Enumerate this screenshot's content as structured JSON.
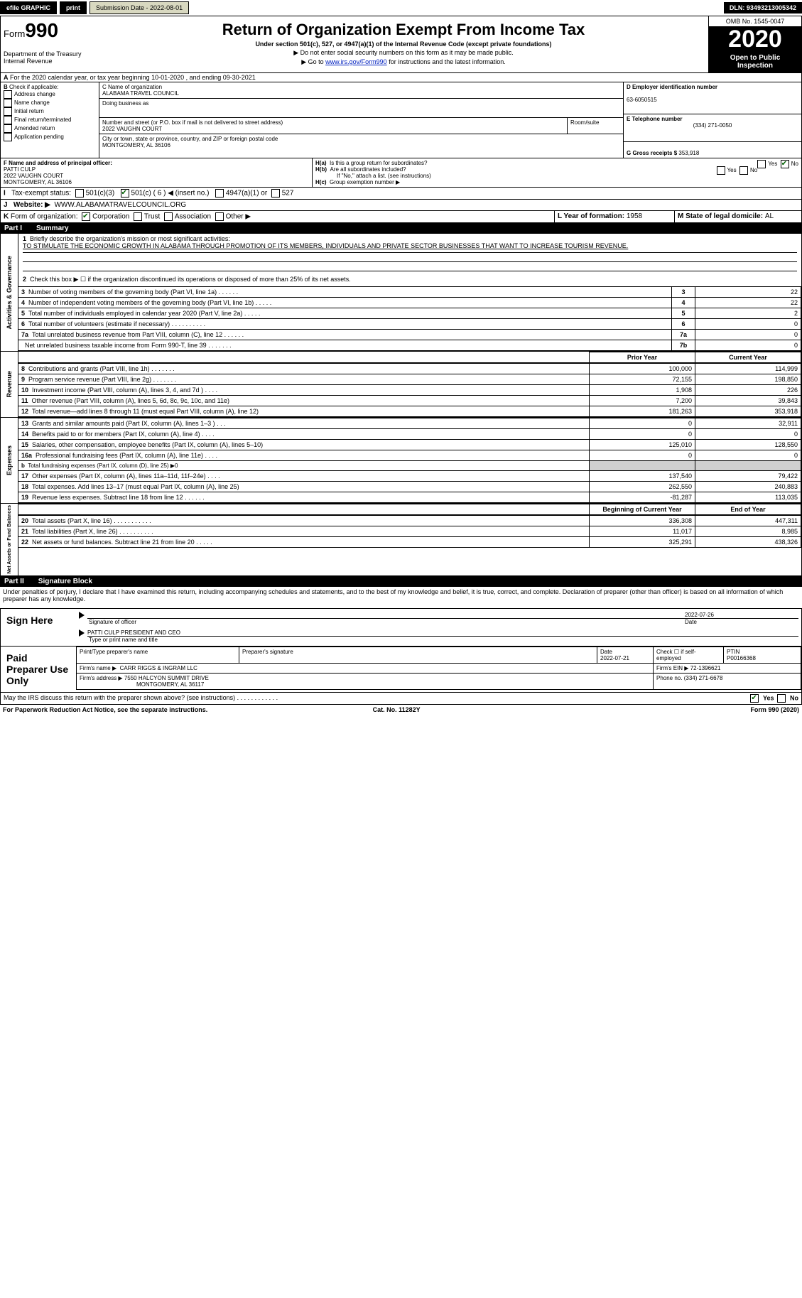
{
  "topbar": {
    "efile": "efile GRAPHIC",
    "print": "print",
    "submission_label": "Submission Date - ",
    "submission_date": "2022-08-01",
    "dln_label": "DLN: ",
    "dln": "93493213005342"
  },
  "header": {
    "form_prefix": "Form",
    "form_number": "990",
    "dept": "Department of the Treasury",
    "irs": "Internal Revenue",
    "title": "Return of Organization Exempt From Income Tax",
    "subtitle": "Under section 501(c), 527, or 4947(a)(1) of the Internal Revenue Code (except private foundations)",
    "note1": "▶ Do not enter social security numbers on this form as it may be made public.",
    "note2_a": "▶ Go to ",
    "note2_link": "www.irs.gov/Form990",
    "note2_b": " for instructions and the latest information.",
    "omb": "OMB No. 1545-0047",
    "year": "2020",
    "open": "Open to Public Inspection"
  },
  "periodA": "For the 2020 calendar year, or tax year beginning 10-01-2020     , and ending 09-30-2021",
  "boxB": {
    "title": "Check if applicable:",
    "opts": [
      "Address change",
      "Name change",
      "Initial return",
      "Final return/terminated",
      "Amended return",
      "Application pending"
    ]
  },
  "boxC": {
    "name_lbl": "C Name of organization",
    "name": "ALABAMA TRAVEL COUNCIL",
    "dba_lbl": "Doing business as",
    "dba": "",
    "addr_lbl": "Number and street (or P.O. box if mail is not delivered to street address)",
    "room_lbl": "Room/suite",
    "addr": "2022 VAUGHN COURT",
    "city_lbl": "City or town, state or province, country, and ZIP or foreign postal code",
    "city": "MONTGOMERY, AL  36106"
  },
  "boxD": {
    "lbl": "D Employer identification number",
    "val": "63-6050515"
  },
  "boxE": {
    "lbl": "E Telephone number",
    "val": "(334) 271-0050"
  },
  "boxG": {
    "lbl": "G Gross receipts $ ",
    "val": "353,918"
  },
  "boxF": {
    "lbl": "F Name and address of principal officer:",
    "name": "PATTI CULP",
    "addr1": "2022 VAUGHN COURT",
    "addr2": "MONTGOMERY, AL  36106"
  },
  "boxH": {
    "a_lbl": "Is this a group return for subordinates?",
    "a_no": true,
    "b_lbl": "Are all subordinates included?",
    "b_note": "If \"No,\" attach a list. (see instructions)",
    "c_lbl": "Group exemption number ▶"
  },
  "boxI": {
    "lbl": "Tax-exempt status:",
    "c3": "501(c)(3)",
    "c": "501(c) ( 6 ) ◀ (insert no.)",
    "c_checked": true,
    "a1": "4947(a)(1) or",
    "s527": "527"
  },
  "boxJ": {
    "lbl": "Website: ▶",
    "val": "WWW.ALABAMATRAVELCOUNCIL.ORG"
  },
  "boxK": {
    "lbl": "Form of organization:",
    "corp": "Corporation",
    "corp_ck": true,
    "trust": "Trust",
    "assoc": "Association",
    "other": "Other ▶"
  },
  "boxL": {
    "lbl": "L Year of formation: ",
    "val": "1958"
  },
  "boxM": {
    "lbl": "M State of legal domicile: ",
    "val": "AL"
  },
  "part1": {
    "title": "Summary",
    "q1_lbl": "Briefly describe the organization's mission or most significant activities:",
    "q1": "TO STIMULATE THE ECONOMIC GROWTH IN ALABAMA THROUGH PROMOTION OF ITS MEMBERS, INDIVIDUALS AND PRIVATE SECTOR BUSINESSES THAT WANT TO INCREASE TOURISM REVENUE.",
    "q2": "Check this box ▶ ☐  if the organization discontinued its operations or disposed of more than 25% of its net assets.",
    "side_gov": "Activities & Governance",
    "side_rev": "Revenue",
    "side_exp": "Expenses",
    "side_net": "Net Assets or Fund Balances",
    "hdr_prior": "Prior Year",
    "hdr_curr": "Current Year",
    "hdr_beg": "Beginning of Current Year",
    "hdr_end": "End of Year",
    "lines_gov": [
      {
        "n": "3",
        "t": "Number of voting members of the governing body (Part VI, line 1a)  .     .     .     .     .     .",
        "bn": "3",
        "v": "22"
      },
      {
        "n": "4",
        "t": "Number of independent voting members of the governing body (Part VI, line 1b)  .     .     .     .     .",
        "bn": "4",
        "v": "22"
      },
      {
        "n": "5",
        "t": "Total number of individuals employed in calendar year 2020 (Part V, line 2a)  .     .     .     .     .",
        "bn": "5",
        "v": "2"
      },
      {
        "n": "6",
        "t": "Total number of volunteers (estimate if necessary)  .     .     .     .     .     .     .     .     .     .",
        "bn": "6",
        "v": "0"
      },
      {
        "n": "7a",
        "t": "Total unrelated business revenue from Part VIII, column (C), line 12  .     .     .     .     .     .",
        "bn": "7a",
        "v": "0"
      },
      {
        "n": "",
        "t": "Net unrelated business taxable income from Form 990-T, line 39  .     .     .     .     .     .     .",
        "bn": "7b",
        "v": "0"
      }
    ],
    "lines_rev": [
      {
        "n": "8",
        "t": "Contributions and grants (Part VIII, line 1h)  .     .     .     .     .     .     .",
        "p": "100,000",
        "c": "114,999"
      },
      {
        "n": "9",
        "t": "Program service revenue (Part VIII, line 2g)  .     .     .     .     .     .     .",
        "p": "72,155",
        "c": "198,850"
      },
      {
        "n": "10",
        "t": "Investment income (Part VIII, column (A), lines 3, 4, and 7d )  .     .     .     .",
        "p": "1,908",
        "c": "226"
      },
      {
        "n": "11",
        "t": "Other revenue (Part VIII, column (A), lines 5, 6d, 8c, 9c, 10c, and 11e)",
        "p": "7,200",
        "c": "39,843"
      },
      {
        "n": "12",
        "t": "Total revenue—add lines 8 through 11 (must equal Part VIII, column (A), line 12)",
        "p": "181,263",
        "c": "353,918"
      }
    ],
    "lines_exp": [
      {
        "n": "13",
        "t": "Grants and similar amounts paid (Part IX, column (A), lines 1–3 )  .     .     .",
        "p": "0",
        "c": "32,911"
      },
      {
        "n": "14",
        "t": "Benefits paid to or for members (Part IX, column (A), line 4)  .     .     .     .",
        "p": "0",
        "c": "0"
      },
      {
        "n": "15",
        "t": "Salaries, other compensation, employee benefits (Part IX, column (A), lines 5–10)",
        "p": "125,010",
        "c": "128,550"
      },
      {
        "n": "16a",
        "t": "Professional fundraising fees (Part IX, column (A), line 11e)  .     .     .     .",
        "p": "0",
        "c": "0"
      },
      {
        "n": "b",
        "t": "Total fundraising expenses (Part IX, column (D), line 25) ▶0",
        "p": "",
        "c": "",
        "shade": true,
        "small": true
      },
      {
        "n": "17",
        "t": "Other expenses (Part IX, column (A), lines 11a–11d, 11f–24e)  .     .     .     .",
        "p": "137,540",
        "c": "79,422"
      },
      {
        "n": "18",
        "t": "Total expenses. Add lines 13–17 (must equal Part IX, column (A), line 25)",
        "p": "262,550",
        "c": "240,883"
      },
      {
        "n": "19",
        "t": "Revenue less expenses. Subtract line 18 from line 12  .     .     .     .     .     .",
        "p": "-81,287",
        "c": "113,035"
      }
    ],
    "lines_net": [
      {
        "n": "20",
        "t": "Total assets (Part X, line 16)  .     .     .     .     .     .     .     .     .     .     .",
        "p": "336,308",
        "c": "447,311"
      },
      {
        "n": "21",
        "t": "Total liabilities (Part X, line 26)  .     .     .     .     .     .     .     .     .     .",
        "p": "11,017",
        "c": "8,985"
      },
      {
        "n": "22",
        "t": "Net assets or fund balances. Subtract line 21 from line 20  .     .     .     .     .",
        "p": "325,291",
        "c": "438,326"
      }
    ]
  },
  "part2": {
    "title": "Signature Block",
    "decl": "Under penalties of perjury, I declare that I have examined this return, including accompanying schedules and statements, and to the best of my knowledge and belief, it is true, correct, and complete. Declaration of preparer (other than officer) is based on all information of which preparer has any knowledge.",
    "sign_here": "Sign Here",
    "sig_officer": "Signature of officer",
    "date_lbl": "Date",
    "sig_date": "2022-07-26",
    "name_title": "PATTI CULP  PRESIDENT AND CEO",
    "type_lbl": "Type or print name and title",
    "paid": "Paid Preparer Use Only",
    "prep_name_lbl": "Print/Type preparer's name",
    "prep_sig_lbl": "Preparer's signature",
    "prep_date": "2022-07-21",
    "check_self": "Check ☐ if self-employed",
    "ptin_lbl": "PTIN",
    "ptin": "P00166368",
    "firm_name_lbl": "Firm's name      ▶",
    "firm_name": "CARR RIGGS & INGRAM LLC",
    "firm_ein_lbl": "Firm's EIN ▶",
    "firm_ein": "72-1396621",
    "firm_addr_lbl": "Firm's address ▶",
    "firm_addr1": "7550 HALCYON SUMMIT DRIVE",
    "firm_addr2": "MONTGOMERY, AL  36117",
    "phone_lbl": "Phone no. ",
    "phone": "(334) 271-6678",
    "discuss": "May the IRS discuss this return with the preparer shown above? (see instructions)   .     .     .     .     .     .     .     .     .     .     .     .",
    "yes": "Yes",
    "no": "No"
  },
  "footer": {
    "pra": "For Paperwork Reduction Act Notice, see the separate instructions.",
    "cat": "Cat. No. 11282Y",
    "form": "Form 990 (2020)"
  }
}
